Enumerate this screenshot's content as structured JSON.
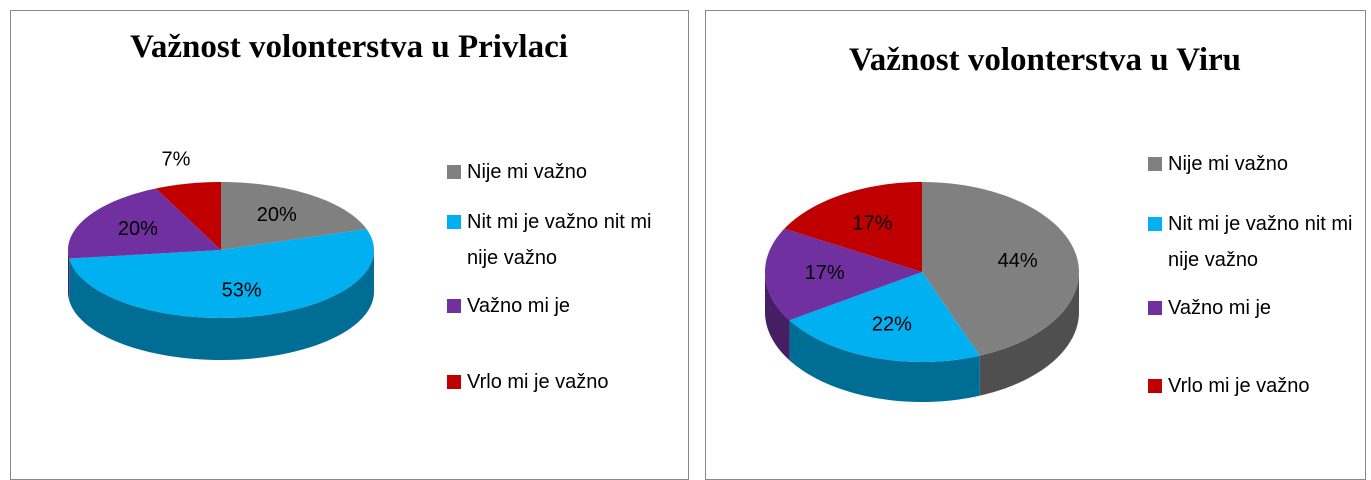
{
  "chart_data": [
    {
      "type": "pie3d",
      "title": "Važnost volonterstva u Privlaci",
      "categories": [
        "Nije mi važno",
        "Nit mi je važno nit mi nije važno",
        "Važno mi je",
        "Vrlo mi je važno"
      ],
      "values": [
        20,
        53,
        20,
        7
      ],
      "value_labels": [
        "20%",
        "53%",
        "20%",
        "7%"
      ],
      "colors": [
        "#808080",
        "#00b0f0",
        "#7030a0",
        "#c00000"
      ],
      "legend": "right"
    },
    {
      "type": "pie3d",
      "title": "Važnost volonterstva u Viru",
      "categories": [
        "Nije mi važno",
        "Nit mi je važno nit mi nije važno",
        "Važno mi je",
        "Vrlo mi je važno"
      ],
      "values": [
        44,
        22,
        17,
        17
      ],
      "value_labels": [
        "44%",
        "22%",
        "17%",
        "17%"
      ],
      "colors": [
        "#808080",
        "#00b0f0",
        "#7030a0",
        "#c00000"
      ],
      "legend": "right"
    }
  ]
}
